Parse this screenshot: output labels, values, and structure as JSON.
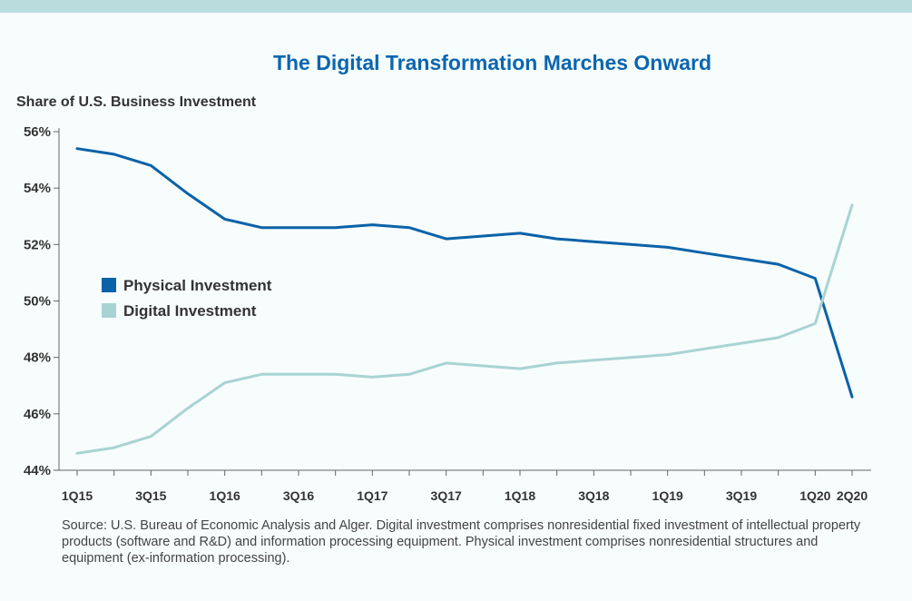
{
  "chart_data": {
    "type": "line",
    "title": "The Digital Transformation Marches Onward",
    "ylabel": "Share of U.S. Business Investment",
    "xlabel": "",
    "ylim": [
      44,
      56
    ],
    "y_ticks": [
      "44%",
      "46%",
      "48%",
      "50%",
      "52%",
      "54%",
      "56%"
    ],
    "y_tick_values": [
      44,
      46,
      48,
      50,
      52,
      54,
      56
    ],
    "x": [
      "1Q15",
      "2Q15",
      "3Q15",
      "4Q15",
      "1Q16",
      "2Q16",
      "3Q16",
      "4Q16",
      "1Q17",
      "2Q17",
      "3Q17",
      "4Q17",
      "1Q18",
      "2Q18",
      "3Q18",
      "4Q18",
      "1Q19",
      "2Q19",
      "3Q19",
      "4Q19",
      "1Q20",
      "2Q20"
    ],
    "x_tick_labels": [
      "1Q15",
      "",
      "3Q15",
      "",
      "1Q16",
      "",
      "3Q16",
      "",
      "1Q17",
      "",
      "3Q17",
      "",
      "1Q18",
      "",
      "3Q18",
      "",
      "1Q19",
      "",
      "3Q19",
      "",
      "1Q20",
      "2Q20"
    ],
    "grid": false,
    "legend_position": "left-center",
    "series": [
      {
        "name": "Physical Investment",
        "color": "#0a62a8",
        "values": [
          55.4,
          55.2,
          54.8,
          53.8,
          52.9,
          52.6,
          52.6,
          52.6,
          52.7,
          52.6,
          52.2,
          52.3,
          52.4,
          52.2,
          52.1,
          52.0,
          51.9,
          51.7,
          51.5,
          51.3,
          50.8,
          46.6
        ]
      },
      {
        "name": "Digital Investment",
        "color": "#a9d3d3",
        "values": [
          44.6,
          44.8,
          45.2,
          46.2,
          47.1,
          47.4,
          47.4,
          47.4,
          47.3,
          47.4,
          47.8,
          47.7,
          47.6,
          47.8,
          47.9,
          48.0,
          48.1,
          48.3,
          48.5,
          48.7,
          49.2,
          53.4
        ]
      }
    ]
  },
  "source_note": "Source: U.S. Bureau of Economic Analysis and Alger. Digital investment comprises nonresidential fixed investment of intellectual property products (software and R&D) and information processing equipment. Physical investment comprises nonresidential structures and equipment (ex-information processing)."
}
